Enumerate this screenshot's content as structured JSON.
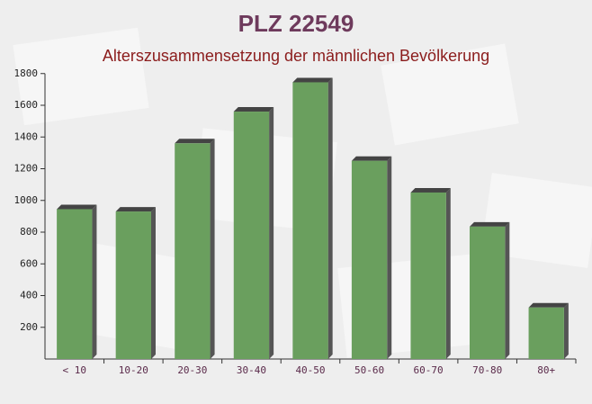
{
  "chart_data": {
    "type": "bar",
    "title": "PLZ 22549",
    "subtitle": "Alterszusammensetzung der männlichen Bevölkerung",
    "categories": [
      "< 10",
      "10-20",
      "20-30",
      "30-40",
      "40-50",
      "50-60",
      "60-70",
      "70-80",
      "80+"
    ],
    "values": [
      945,
      930,
      1360,
      1560,
      1745,
      1250,
      1050,
      835,
      325
    ],
    "color": "#6a9f5e",
    "ylim": [
      0,
      1800
    ],
    "yticks": [
      200,
      400,
      600,
      800,
      1000,
      1200,
      1400,
      1600,
      1800
    ]
  }
}
